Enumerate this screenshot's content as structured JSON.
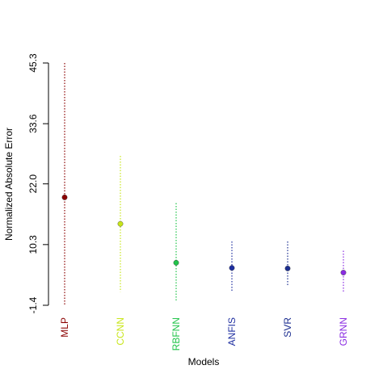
{
  "chart_data": {
    "type": "errorbar",
    "title": "",
    "xlabel": "Models",
    "ylabel": "Normalized Absolute Error",
    "categories": [
      "MLP",
      "CCNN",
      "RBFNN",
      "ANFIS",
      "SVR",
      "GRNN"
    ],
    "colors": [
      "#8b0000",
      "#c8e61a",
      "#21c44a",
      "#1f2fa0",
      "#1c2e90",
      "#8a2be2"
    ],
    "y_ticks": [
      "-1.4",
      "10.3",
      "22.0",
      "33.6",
      "45.3"
    ],
    "y_tick_values": [
      -1.4,
      10.3,
      22.0,
      33.6,
      45.3
    ],
    "ylim": [
      -1.4,
      45.3
    ],
    "grid": false,
    "points": [
      {
        "label": "MLP",
        "mean": 19.4,
        "lower": -1.4,
        "upper": 45.3
      },
      {
        "label": "CCNN",
        "mean": 14.3,
        "lower": 1.2,
        "upper": 27.4
      },
      {
        "label": "RBFNN",
        "mean": 6.8,
        "lower": -0.6,
        "upper": 18.3
      },
      {
        "label": "ANFIS",
        "mean": 5.8,
        "lower": 1.2,
        "upper": 10.9
      },
      {
        "label": "SVR",
        "mean": 5.7,
        "lower": 2.4,
        "upper": 10.9
      },
      {
        "label": "GRNN",
        "mean": 4.9,
        "lower": 1.2,
        "upper": 9.1
      }
    ]
  }
}
